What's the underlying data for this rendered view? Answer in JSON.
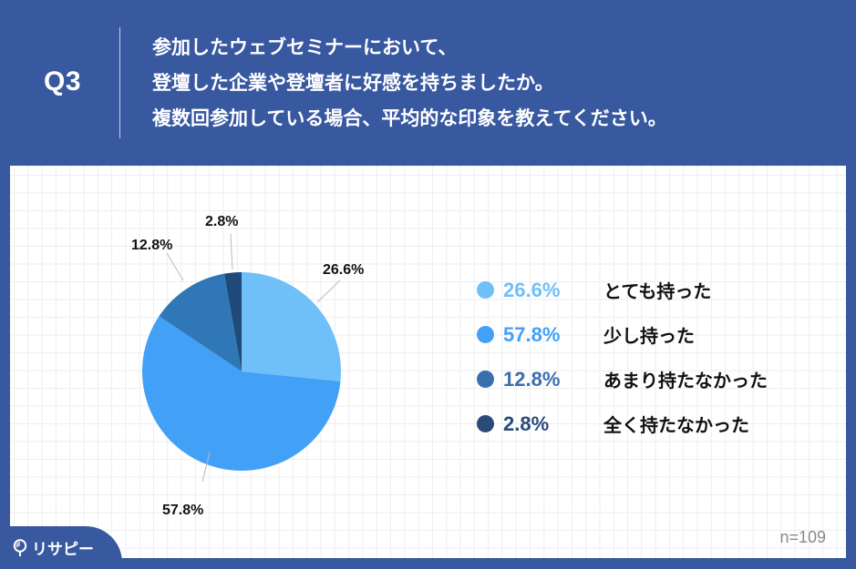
{
  "header": {
    "question_number": "Q3",
    "question_lines": [
      "参加したウェブセミナーにおいて、",
      "登壇した企業や登壇者に好感を持ちましたか。",
      "複数回参加している場合、平均的な印象を教えてください。"
    ]
  },
  "colors": {
    "background": "#3858a0",
    "slice_1": "#6fbff8",
    "slice_2": "#42a1f6",
    "slice_3": "#2f77b6",
    "slice_4": "#1f4a7a",
    "legend_pct_1": "#6fbff8",
    "legend_pct_2": "#42a1f6",
    "legend_pct_3": "#3a6fae",
    "legend_pct_4": "#2a4a7a"
  },
  "legend": [
    {
      "pct": "26.6%",
      "label": "とても持った"
    },
    {
      "pct": "57.8%",
      "label": "少し持った"
    },
    {
      "pct": "12.8%",
      "label": "あまり持たなかった"
    },
    {
      "pct": "2.8%",
      "label": "全く持たなかった"
    }
  ],
  "slice_labels": {
    "s1": "26.6%",
    "s2": "57.8%",
    "s3": "12.8%",
    "s4": "2.8%"
  },
  "footer": {
    "sample_size": "n=109",
    "brand": "リサピー"
  },
  "chart_data": {
    "type": "pie",
    "title": "参加したウェブセミナーにおいて、登壇した企業や登壇者に好感を持ちましたか。複数回参加している場合、平均的な印象を教えてください。",
    "categories": [
      "とても持った",
      "少し持った",
      "あまり持たなかった",
      "全く持たなかった"
    ],
    "values": [
      26.6,
      57.8,
      12.8,
      2.8
    ],
    "unit": "%",
    "start_angle": "12 o'clock, clockwise",
    "legend_position": "right",
    "annotations": [
      "n=109"
    ]
  }
}
